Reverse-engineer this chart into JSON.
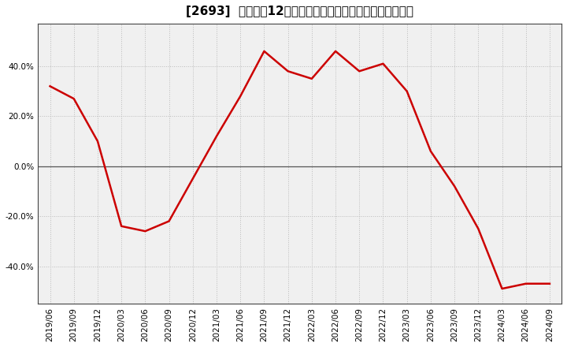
{
  "title": "[2693]  売上高の12か月移動合計の対前年同期増減率の推移",
  "x_labels": [
    "2019/06",
    "2019/09",
    "2019/12",
    "2020/03",
    "2020/06",
    "2020/09",
    "2020/12",
    "2021/03",
    "2021/06",
    "2021/09",
    "2021/12",
    "2022/03",
    "2022/06",
    "2022/09",
    "2022/12",
    "2023/03",
    "2023/06",
    "2023/09",
    "2023/12",
    "2024/03",
    "2024/06",
    "2024/09"
  ],
  "y_values": [
    0.32,
    0.27,
    0.1,
    -0.24,
    -0.26,
    -0.22,
    -0.05,
    0.12,
    0.28,
    0.46,
    0.38,
    0.35,
    0.46,
    0.38,
    0.41,
    0.3,
    0.06,
    -0.08,
    -0.25,
    -0.49,
    -0.47,
    -0.47
  ],
  "line_color": "#cc0000",
  "line_width": 1.8,
  "background_color": "#ffffff",
  "plot_bg_color": "#f0f0f0",
  "grid_color": "#bbbbbb",
  "zero_line_color": "#555555",
  "ylim": [
    -0.55,
    0.57
  ],
  "yticks": [
    -0.4,
    -0.2,
    0.0,
    0.2,
    0.4
  ],
  "ytick_labels": [
    "-40.0%",
    "-20.0%",
    "0.0%",
    "20.0%",
    "40.0%"
  ],
  "title_fontsize": 11,
  "tick_fontsize": 7.5
}
